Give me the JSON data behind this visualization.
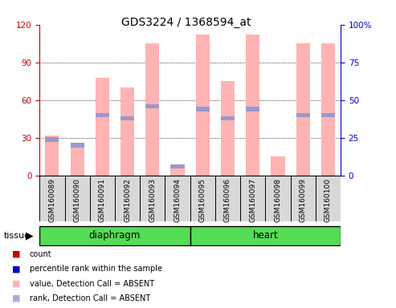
{
  "title": "GDS3224 / 1368594_at",
  "samples": [
    "GSM160089",
    "GSM160090",
    "GSM160091",
    "GSM160092",
    "GSM160093",
    "GSM160094",
    "GSM160095",
    "GSM160096",
    "GSM160097",
    "GSM160098",
    "GSM160099",
    "GSM160100"
  ],
  "tissue_groups": [
    {
      "label": "diaphragm",
      "start": 0,
      "end": 5
    },
    {
      "label": "heart",
      "start": 6,
      "end": 11
    }
  ],
  "pink_bar_values": [
    32,
    22,
    78,
    70,
    105,
    7,
    112,
    75,
    112,
    15,
    105,
    105
  ],
  "blue_marker_values": [
    24,
    20,
    40,
    38,
    46,
    6,
    44,
    38,
    44,
    0,
    40,
    40
  ],
  "ylim_left": [
    0,
    120
  ],
  "ylim_right": [
    0,
    100
  ],
  "yticks_left": [
    0,
    30,
    60,
    90,
    120
  ],
  "yticks_right": [
    0,
    25,
    50,
    75,
    100
  ],
  "left_axis_color": "#cc0000",
  "right_axis_color": "#0000cc",
  "pink_bar_color": "#ffb3b3",
  "blue_marker_color": "#9999cc",
  "legend_items": [
    {
      "label": "count",
      "color": "#cc0000"
    },
    {
      "label": "percentile rank within the sample",
      "color": "#0000cc"
    },
    {
      "label": "value, Detection Call = ABSENT",
      "color": "#ffb3b3"
    },
    {
      "label": "rank, Detection Call = ABSENT",
      "color": "#aaaadd"
    }
  ]
}
